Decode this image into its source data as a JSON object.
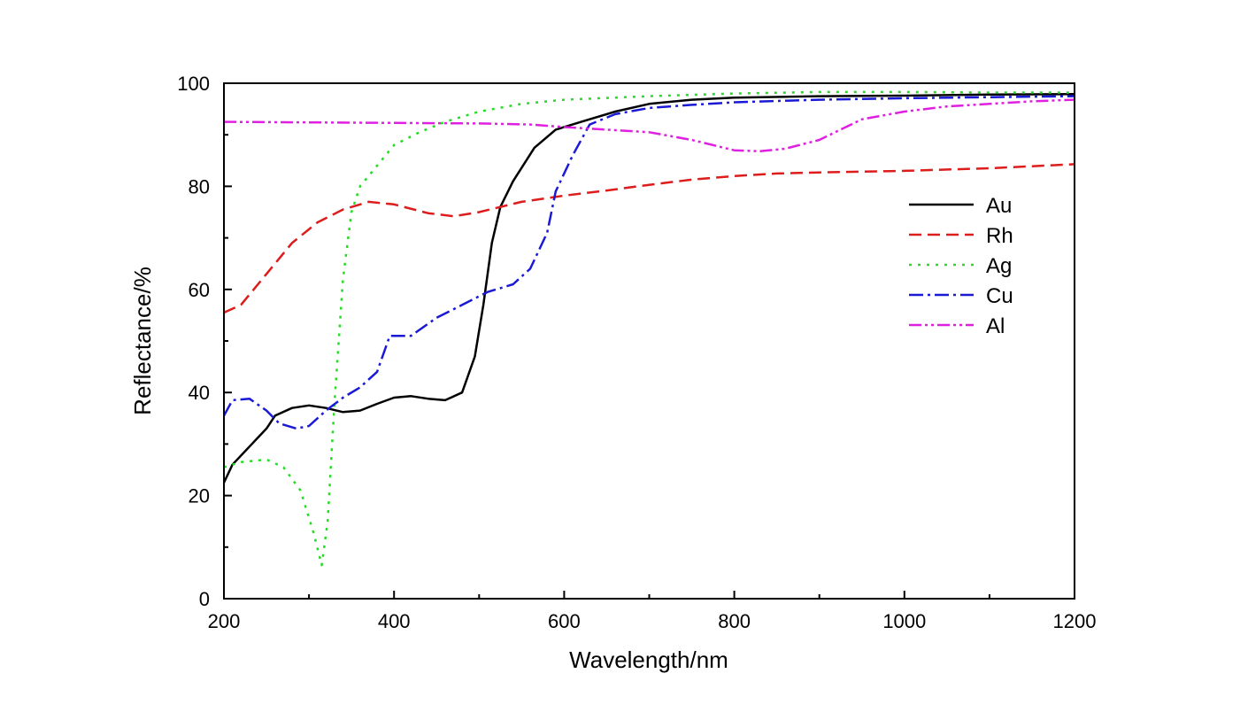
{
  "chart_data": {
    "type": "line",
    "title": "",
    "xlabel": "Wavelength/nm",
    "ylabel": "Reflectance/%",
    "xlim": [
      200,
      1200
    ],
    "ylim": [
      0,
      100
    ],
    "xticks": [
      200,
      400,
      600,
      800,
      1000,
      1200
    ],
    "yticks": [
      0,
      20,
      40,
      60,
      80,
      100
    ],
    "grid": false,
    "legend_position": "right",
    "series": [
      {
        "name": "Au",
        "color": "#000000",
        "dash": "solid",
        "points": [
          [
            200,
            22.5
          ],
          [
            210,
            26
          ],
          [
            230,
            29.5
          ],
          [
            250,
            33
          ],
          [
            260,
            35.5
          ],
          [
            280,
            37
          ],
          [
            300,
            37.5
          ],
          [
            320,
            37
          ],
          [
            340,
            36.2
          ],
          [
            360,
            36.5
          ],
          [
            380,
            37.8
          ],
          [
            400,
            39
          ],
          [
            420,
            39.3
          ],
          [
            440,
            38.8
          ],
          [
            460,
            38.5
          ],
          [
            480,
            40
          ],
          [
            495,
            47
          ],
          [
            505,
            57
          ],
          [
            515,
            69
          ],
          [
            525,
            76
          ],
          [
            540,
            81
          ],
          [
            565,
            87.5
          ],
          [
            590,
            91
          ],
          [
            620,
            92.5
          ],
          [
            660,
            94.5
          ],
          [
            700,
            96
          ],
          [
            750,
            96.8
          ],
          [
            800,
            97.2
          ],
          [
            900,
            97.5
          ],
          [
            1000,
            97.6
          ],
          [
            1100,
            97.8
          ],
          [
            1200,
            97.9
          ]
        ]
      },
      {
        "name": "Rh",
        "color": "#dd1c1c",
        "dash": "14,7",
        "points": [
          [
            200,
            55.5
          ],
          [
            220,
            57
          ],
          [
            250,
            63
          ],
          [
            280,
            69
          ],
          [
            310,
            73
          ],
          [
            340,
            75.5
          ],
          [
            370,
            77
          ],
          [
            400,
            76.5
          ],
          [
            440,
            74.8
          ],
          [
            470,
            74.2
          ],
          [
            500,
            75
          ],
          [
            550,
            77
          ],
          [
            600,
            78.2
          ],
          [
            650,
            79.2
          ],
          [
            700,
            80.3
          ],
          [
            750,
            81.3
          ],
          [
            800,
            82
          ],
          [
            850,
            82.5
          ],
          [
            900,
            82.7
          ],
          [
            1000,
            83
          ],
          [
            1100,
            83.5
          ],
          [
            1200,
            84.3
          ]
        ]
      },
      {
        "name": "Ag",
        "color": "#22dd22",
        "dash": "3,7",
        "points": [
          [
            200,
            25.5
          ],
          [
            220,
            26.5
          ],
          [
            250,
            27
          ],
          [
            270,
            25.5
          ],
          [
            290,
            21
          ],
          [
            305,
            13
          ],
          [
            315,
            6.5
          ],
          [
            322,
            15
          ],
          [
            330,
            38
          ],
          [
            340,
            62
          ],
          [
            350,
            75
          ],
          [
            360,
            80
          ],
          [
            380,
            84
          ],
          [
            400,
            88
          ],
          [
            430,
            90.5
          ],
          [
            460,
            92.5
          ],
          [
            500,
            94.5
          ],
          [
            550,
            96
          ],
          [
            600,
            96.8
          ],
          [
            700,
            97.5
          ],
          [
            800,
            98
          ],
          [
            900,
            98.3
          ],
          [
            1000,
            98.3
          ],
          [
            1100,
            98.2
          ],
          [
            1200,
            98.2
          ]
        ]
      },
      {
        "name": "Cu",
        "color": "#1a1ad6",
        "dash": "16,5,3,5",
        "points": [
          [
            200,
            35.5
          ],
          [
            210,
            38.5
          ],
          [
            230,
            38.8
          ],
          [
            250,
            36.5
          ],
          [
            265,
            34
          ],
          [
            285,
            33
          ],
          [
            300,
            33.5
          ],
          [
            320,
            36.5
          ],
          [
            340,
            39
          ],
          [
            360,
            41
          ],
          [
            380,
            44
          ],
          [
            395,
            51
          ],
          [
            420,
            51
          ],
          [
            450,
            54.5
          ],
          [
            480,
            57
          ],
          [
            510,
            59.5
          ],
          [
            540,
            61
          ],
          [
            560,
            64
          ],
          [
            580,
            71
          ],
          [
            590,
            79
          ],
          [
            610,
            86
          ],
          [
            630,
            92
          ],
          [
            660,
            94
          ],
          [
            700,
            95.2
          ],
          [
            750,
            95.8
          ],
          [
            800,
            96.3
          ],
          [
            900,
            96.8
          ],
          [
            1000,
            97.1
          ],
          [
            1100,
            97.3
          ],
          [
            1200,
            97.5
          ]
        ]
      },
      {
        "name": "Al",
        "color": "#e020e0",
        "dash": "14,4,3,4,3,4",
        "points": [
          [
            200,
            92.5
          ],
          [
            300,
            92.4
          ],
          [
            400,
            92.3
          ],
          [
            500,
            92.2
          ],
          [
            560,
            92
          ],
          [
            600,
            91.5
          ],
          [
            650,
            91
          ],
          [
            700,
            90.5
          ],
          [
            750,
            89
          ],
          [
            800,
            87
          ],
          [
            830,
            86.8
          ],
          [
            860,
            87.3
          ],
          [
            900,
            89
          ],
          [
            950,
            93
          ],
          [
            1000,
            94.5
          ],
          [
            1050,
            95.5
          ],
          [
            1100,
            96
          ],
          [
            1150,
            96.5
          ],
          [
            1200,
            96.8
          ]
        ]
      }
    ]
  }
}
